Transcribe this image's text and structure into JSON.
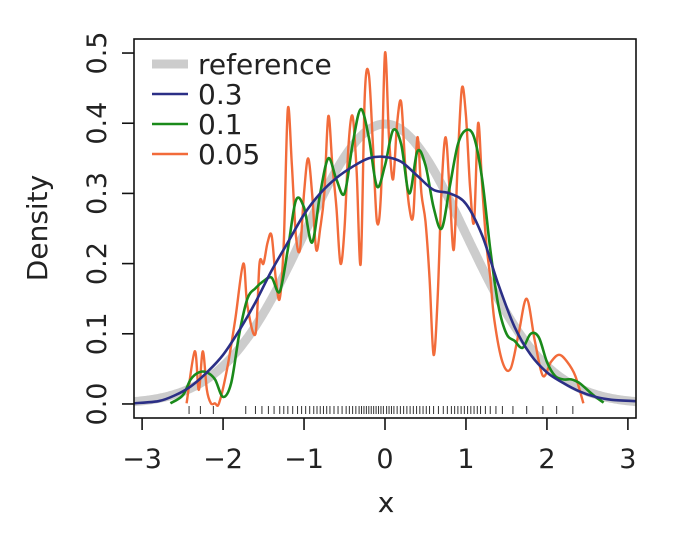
{
  "chart_data": {
    "type": "line",
    "title": "",
    "xlabel": "x",
    "ylabel": "Density",
    "xlim": [
      -3.1,
      3.1
    ],
    "ylim": [
      -0.02,
      0.52
    ],
    "xticks": [
      -3,
      -2,
      -1,
      0,
      1,
      2,
      3
    ],
    "xtick_labels": [
      "−3",
      "−2",
      "−1",
      "0",
      "1",
      "2",
      "3"
    ],
    "yticks": [
      0.0,
      0.1,
      0.2,
      0.3,
      0.4,
      0.5
    ],
    "ytick_labels": [
      "0.0",
      "0.1",
      "0.2",
      "0.3",
      "0.4",
      "0.5"
    ],
    "grid": false,
    "legend_position": "top-left",
    "reference": {
      "name": "reference",
      "color": "#cccccc",
      "description": "standard normal density"
    },
    "series": [
      {
        "name": "0.3",
        "color": "#2b2f86",
        "x": [
          -3.1,
          -2.8,
          -2.6,
          -2.4,
          -2.2,
          -2.0,
          -1.8,
          -1.6,
          -1.4,
          -1.2,
          -1.0,
          -0.8,
          -0.6,
          -0.4,
          -0.2,
          0.0,
          0.2,
          0.4,
          0.6,
          0.8,
          1.0,
          1.2,
          1.4,
          1.6,
          1.8,
          2.0,
          2.2,
          2.4,
          2.6,
          2.8,
          3.1
        ],
        "y": [
          0.001,
          0.004,
          0.012,
          0.025,
          0.045,
          0.07,
          0.105,
          0.145,
          0.19,
          0.23,
          0.27,
          0.3,
          0.322,
          0.338,
          0.35,
          0.352,
          0.345,
          0.325,
          0.305,
          0.3,
          0.285,
          0.24,
          0.17,
          0.11,
          0.07,
          0.045,
          0.03,
          0.018,
          0.01,
          0.006,
          0.004
        ]
      },
      {
        "name": "0.1",
        "color": "#1a8a1a",
        "x": [
          -2.65,
          -2.5,
          -2.4,
          -2.3,
          -2.2,
          -2.1,
          -2.0,
          -1.9,
          -1.8,
          -1.7,
          -1.6,
          -1.5,
          -1.4,
          -1.3,
          -1.2,
          -1.1,
          -1.0,
          -0.9,
          -0.8,
          -0.7,
          -0.6,
          -0.5,
          -0.4,
          -0.3,
          -0.2,
          -0.1,
          0.0,
          0.1,
          0.2,
          0.3,
          0.4,
          0.5,
          0.6,
          0.7,
          0.8,
          0.9,
          1.0,
          1.1,
          1.2,
          1.3,
          1.4,
          1.5,
          1.6,
          1.7,
          1.8,
          1.9,
          2.0,
          2.1,
          2.2,
          2.3,
          2.4,
          2.5,
          2.6,
          2.7
        ],
        "y": [
          0.001,
          0.012,
          0.035,
          0.045,
          0.045,
          0.035,
          0.01,
          0.03,
          0.1,
          0.15,
          0.165,
          0.175,
          0.18,
          0.16,
          0.22,
          0.29,
          0.28,
          0.23,
          0.3,
          0.35,
          0.32,
          0.3,
          0.37,
          0.42,
          0.38,
          0.31,
          0.34,
          0.39,
          0.37,
          0.3,
          0.36,
          0.34,
          0.28,
          0.25,
          0.31,
          0.37,
          0.39,
          0.38,
          0.32,
          0.22,
          0.14,
          0.1,
          0.09,
          0.08,
          0.1,
          0.095,
          0.06,
          0.04,
          0.035,
          0.035,
          0.03,
          0.02,
          0.01,
          0.002
        ]
      },
      {
        "name": "0.05",
        "color": "#f26b3a",
        "x": [
          -2.45,
          -2.35,
          -2.3,
          -2.25,
          -2.2,
          -2.15,
          -2.1,
          -2.05,
          -1.95,
          -1.85,
          -1.75,
          -1.7,
          -1.6,
          -1.55,
          -1.5,
          -1.45,
          -1.4,
          -1.35,
          -1.3,
          -1.25,
          -1.2,
          -1.15,
          -1.1,
          -1.05,
          -1.0,
          -0.95,
          -0.9,
          -0.85,
          -0.8,
          -0.75,
          -0.7,
          -0.65,
          -0.6,
          -0.55,
          -0.5,
          -0.45,
          -0.4,
          -0.35,
          -0.3,
          -0.25,
          -0.2,
          -0.15,
          -0.1,
          -0.05,
          0.0,
          0.05,
          0.1,
          0.15,
          0.2,
          0.25,
          0.3,
          0.35,
          0.4,
          0.45,
          0.5,
          0.55,
          0.6,
          0.65,
          0.7,
          0.75,
          0.8,
          0.85,
          0.9,
          0.95,
          1.0,
          1.05,
          1.1,
          1.15,
          1.2,
          1.25,
          1.3,
          1.35,
          1.45,
          1.55,
          1.65,
          1.75,
          1.85,
          1.95,
          2.05,
          2.15,
          2.25,
          2.35,
          2.45
        ],
        "y": [
          0.001,
          0.075,
          0.02,
          0.075,
          0.02,
          0.001,
          0.001,
          0.001,
          0.05,
          0.12,
          0.2,
          0.14,
          0.1,
          0.2,
          0.2,
          0.23,
          0.24,
          0.18,
          0.15,
          0.23,
          0.42,
          0.34,
          0.24,
          0.22,
          0.3,
          0.35,
          0.3,
          0.22,
          0.25,
          0.3,
          0.41,
          0.34,
          0.28,
          0.2,
          0.25,
          0.37,
          0.41,
          0.33,
          0.2,
          0.44,
          0.47,
          0.37,
          0.26,
          0.3,
          0.5,
          0.38,
          0.32,
          0.4,
          0.43,
          0.34,
          0.28,
          0.27,
          0.38,
          0.3,
          0.26,
          0.18,
          0.07,
          0.15,
          0.31,
          0.38,
          0.3,
          0.22,
          0.35,
          0.45,
          0.41,
          0.31,
          0.26,
          0.4,
          0.31,
          0.23,
          0.18,
          0.12,
          0.06,
          0.05,
          0.1,
          0.15,
          0.09,
          0.04,
          0.06,
          0.07,
          0.06,
          0.04,
          0.001
        ]
      }
    ],
    "rug_x": [
      -2.42,
      -2.28,
      -2.12,
      -1.72,
      -1.6,
      -1.52,
      -1.44,
      -1.37,
      -1.3,
      -1.25,
      -1.2,
      -1.14,
      -1.08,
      -1.03,
      -0.98,
      -0.93,
      -0.88,
      -0.84,
      -0.8,
      -0.76,
      -0.72,
      -0.68,
      -0.63,
      -0.58,
      -0.53,
      -0.48,
      -0.44,
      -0.4,
      -0.36,
      -0.32,
      -0.29,
      -0.26,
      -0.23,
      -0.2,
      -0.17,
      -0.14,
      -0.11,
      -0.08,
      -0.05,
      -0.02,
      0.02,
      0.05,
      0.08,
      0.11,
      0.15,
      0.19,
      0.23,
      0.27,
      0.31,
      0.35,
      0.39,
      0.43,
      0.47,
      0.51,
      0.55,
      0.6,
      0.66,
      0.72,
      0.77,
      0.82,
      0.86,
      0.9,
      0.94,
      0.98,
      1.02,
      1.06,
      1.1,
      1.14,
      1.18,
      1.24,
      1.3,
      1.37,
      1.45,
      1.58,
      1.75,
      1.95,
      2.12,
      2.32
    ]
  }
}
